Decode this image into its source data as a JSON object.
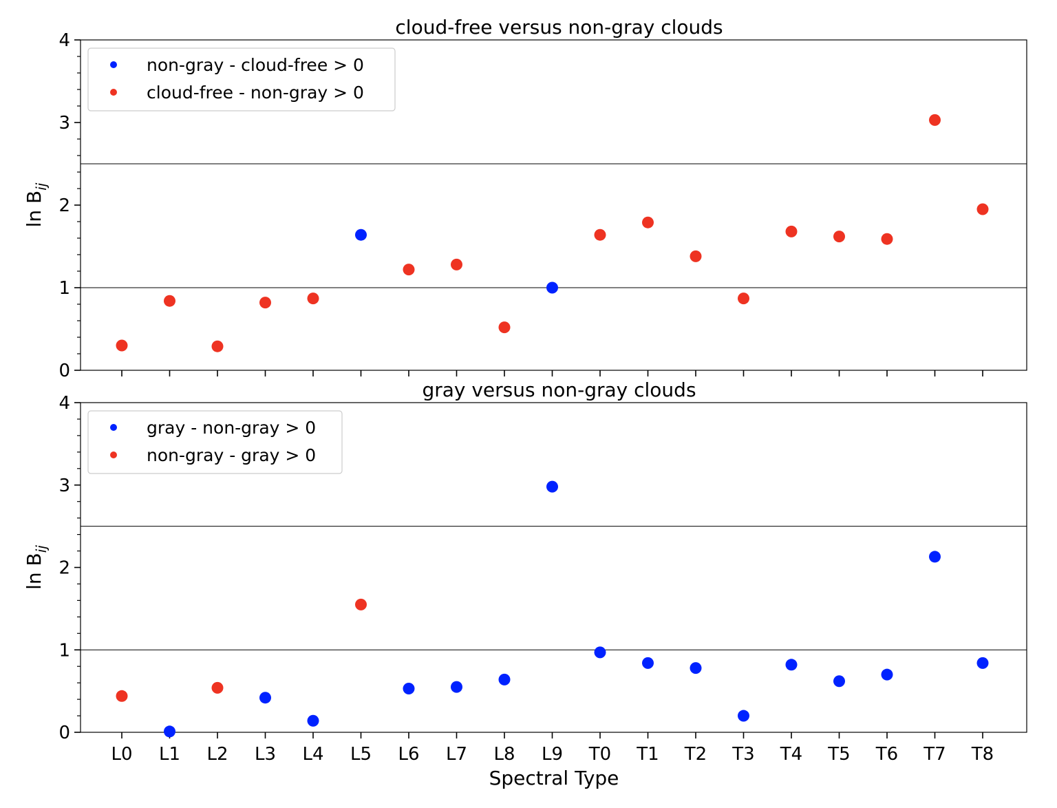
{
  "chart_data": [
    {
      "type": "scatter",
      "title": "cloud-free versus non-gray clouds",
      "xlabel": "",
      "ylabel": "ln B",
      "ylabel_sub": "ij",
      "categories": [
        "L0",
        "L1",
        "L2",
        "L3",
        "L4",
        "L5",
        "L6",
        "L7",
        "L8",
        "L9",
        "T0",
        "T1",
        "T2",
        "T3",
        "T4",
        "T5",
        "T6",
        "T7",
        "T8"
      ],
      "values": [
        0.3,
        0.84,
        0.29,
        0.82,
        0.87,
        1.64,
        1.22,
        1.28,
        0.52,
        1.0,
        1.64,
        1.79,
        1.38,
        0.87,
        1.68,
        1.62,
        1.59,
        3.03,
        1.95
      ],
      "series_index": [
        1,
        1,
        1,
        1,
        1,
        0,
        1,
        1,
        1,
        0,
        1,
        1,
        1,
        1,
        1,
        1,
        1,
        1,
        1
      ],
      "series": [
        {
          "name": "non-gray - cloud-free  >  0",
          "color": "#0022ff"
        },
        {
          "name": "cloud-free - non-gray  >  0",
          "color": "#ee3322"
        }
      ],
      "ylim": [
        0,
        4
      ],
      "yticks": [
        "0",
        "1",
        "2",
        "3",
        "4"
      ],
      "reference_lines": [
        1.0,
        2.5
      ],
      "grid": false,
      "legend": "top-left",
      "show_xticklabels": false
    },
    {
      "type": "scatter",
      "title": "gray versus non-gray clouds",
      "xlabel": "Spectral Type",
      "ylabel": "ln B",
      "ylabel_sub": "ij",
      "categories": [
        "L0",
        "L1",
        "L2",
        "L3",
        "L4",
        "L5",
        "L6",
        "L7",
        "L8",
        "L9",
        "T0",
        "T1",
        "T2",
        "T3",
        "T4",
        "T5",
        "T6",
        "T7",
        "T8"
      ],
      "values": [
        0.44,
        0.01,
        0.54,
        0.42,
        0.14,
        1.55,
        0.53,
        0.55,
        0.64,
        2.98,
        0.97,
        0.84,
        0.78,
        0.2,
        0.82,
        0.62,
        0.7,
        2.13,
        0.84
      ],
      "series_index": [
        1,
        0,
        1,
        0,
        0,
        1,
        0,
        0,
        0,
        0,
        0,
        0,
        0,
        0,
        0,
        0,
        0,
        0,
        0
      ],
      "series": [
        {
          "name": "gray - non-gray  >  0",
          "color": "#0022ff"
        },
        {
          "name": "non-gray - gray  >  0",
          "color": "#ee3322"
        }
      ],
      "ylim": [
        0,
        4
      ],
      "yticks": [
        "0",
        "1",
        "2",
        "3",
        "4"
      ],
      "reference_lines": [
        1.0,
        2.5
      ],
      "grid": false,
      "legend": "top-left",
      "show_xticklabels": true
    }
  ]
}
